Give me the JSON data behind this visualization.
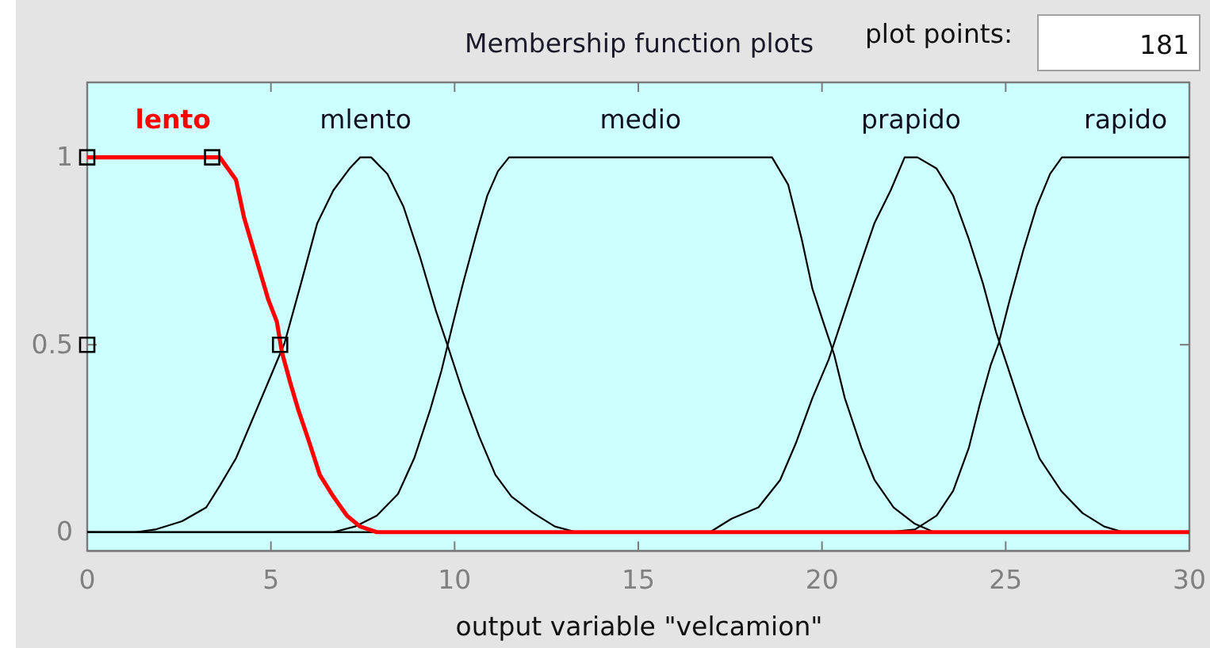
{
  "chart_data": {
    "type": "line",
    "title": "Membership function plots",
    "xlabel": "output variable \"velcamion\"",
    "annotations": [
      "plot points:",
      "181"
    ],
    "xlim": [
      0,
      30
    ],
    "ylim": [
      -0.05,
      1.2
    ],
    "xticks": [
      0,
      5,
      10,
      15,
      20,
      25,
      30
    ],
    "yticks": [
      0,
      0.5,
      1
    ],
    "series": [
      {
        "name": "lento",
        "color": "#ff0000",
        "x": [
          0,
          3.4,
          3.61,
          4.05,
          4.27,
          4.49,
          4.71,
          4.93,
          5.16,
          5.3,
          5.52,
          5.74,
          6.04,
          6.33,
          6.7,
          7.07,
          7.43,
          7.88,
          30
        ],
        "values": [
          1,
          1,
          1,
          0.94,
          0.839,
          0.766,
          0.693,
          0.62,
          0.562,
          0.48,
          0.401,
          0.328,
          0.241,
          0.153,
          0.095,
          0.044,
          0.015,
          0,
          0
        ]
      },
      {
        "name": "mlento",
        "color": "#000000",
        "x": [
          0,
          1.33,
          1.85,
          2.58,
          3.24,
          3.61,
          4.05,
          4.49,
          4.93,
          5.37,
          5.82,
          6.26,
          6.7,
          7.14,
          7.43,
          7.73,
          8.17,
          8.61,
          9.05,
          9.49,
          9.79,
          10.23,
          10.67,
          11.11,
          11.55,
          12.14,
          12.73,
          13.31,
          30
        ],
        "values": [
          0,
          0,
          0.007,
          0.029,
          0.066,
          0.124,
          0.197,
          0.299,
          0.401,
          0.504,
          0.664,
          0.824,
          0.912,
          0.97,
          1,
          1,
          0.956,
          0.868,
          0.737,
          0.591,
          0.504,
          0.372,
          0.255,
          0.153,
          0.095,
          0.051,
          0.015,
          0,
          0
        ]
      },
      {
        "name": "medio",
        "color": "#000000",
        "x": [
          0,
          6.7,
          7.29,
          7.88,
          8.46,
          8.9,
          9.34,
          9.64,
          9.93,
          10.23,
          10.59,
          10.89,
          11.18,
          11.48,
          18.64,
          19.08,
          19.45,
          19.74,
          20.03,
          20.33,
          20.62,
          21.07,
          21.43,
          21.95,
          22.53,
          23.05,
          30
        ],
        "values": [
          0,
          0,
          0.015,
          0.044,
          0.102,
          0.197,
          0.328,
          0.43,
          0.547,
          0.664,
          0.795,
          0.898,
          0.963,
          1,
          1,
          0.927,
          0.781,
          0.649,
          0.562,
          0.474,
          0.358,
          0.226,
          0.139,
          0.066,
          0.022,
          0,
          0
        ]
      },
      {
        "name": "prapido",
        "color": "#000000",
        "x": [
          0,
          16.95,
          17.54,
          18.27,
          18.86,
          19.3,
          19.74,
          20.18,
          20.62,
          21.07,
          21.43,
          21.87,
          22.25,
          22.6,
          23.12,
          23.57,
          24.0,
          24.38,
          24.74,
          25.04,
          25.48,
          25.92,
          26.51,
          27.09,
          27.68,
          28.2,
          30
        ],
        "values": [
          0,
          0,
          0.036,
          0.066,
          0.139,
          0.24,
          0.358,
          0.46,
          0.59,
          0.722,
          0.825,
          0.912,
          1,
          1,
          0.97,
          0.898,
          0.781,
          0.664,
          0.533,
          0.445,
          0.314,
          0.197,
          0.11,
          0.051,
          0.015,
          0,
          0
        ]
      },
      {
        "name": "rapido",
        "color": "#000000",
        "x": [
          0,
          21.8,
          22.53,
          23.12,
          23.57,
          24.0,
          24.3,
          24.59,
          24.81,
          25.11,
          25.48,
          25.84,
          26.21,
          26.53,
          30
        ],
        "values": [
          0,
          0,
          0.007,
          0.044,
          0.11,
          0.226,
          0.343,
          0.445,
          0.504,
          0.62,
          0.752,
          0.868,
          0.956,
          1,
          1
        ]
      },
      {
        "type": "scatter",
        "color": "#000000",
        "marker": "square",
        "x": [
          0,
          0,
          3.4,
          5.25
        ],
        "values": [
          1,
          0.5,
          1,
          0.5
        ]
      }
    ]
  }
}
